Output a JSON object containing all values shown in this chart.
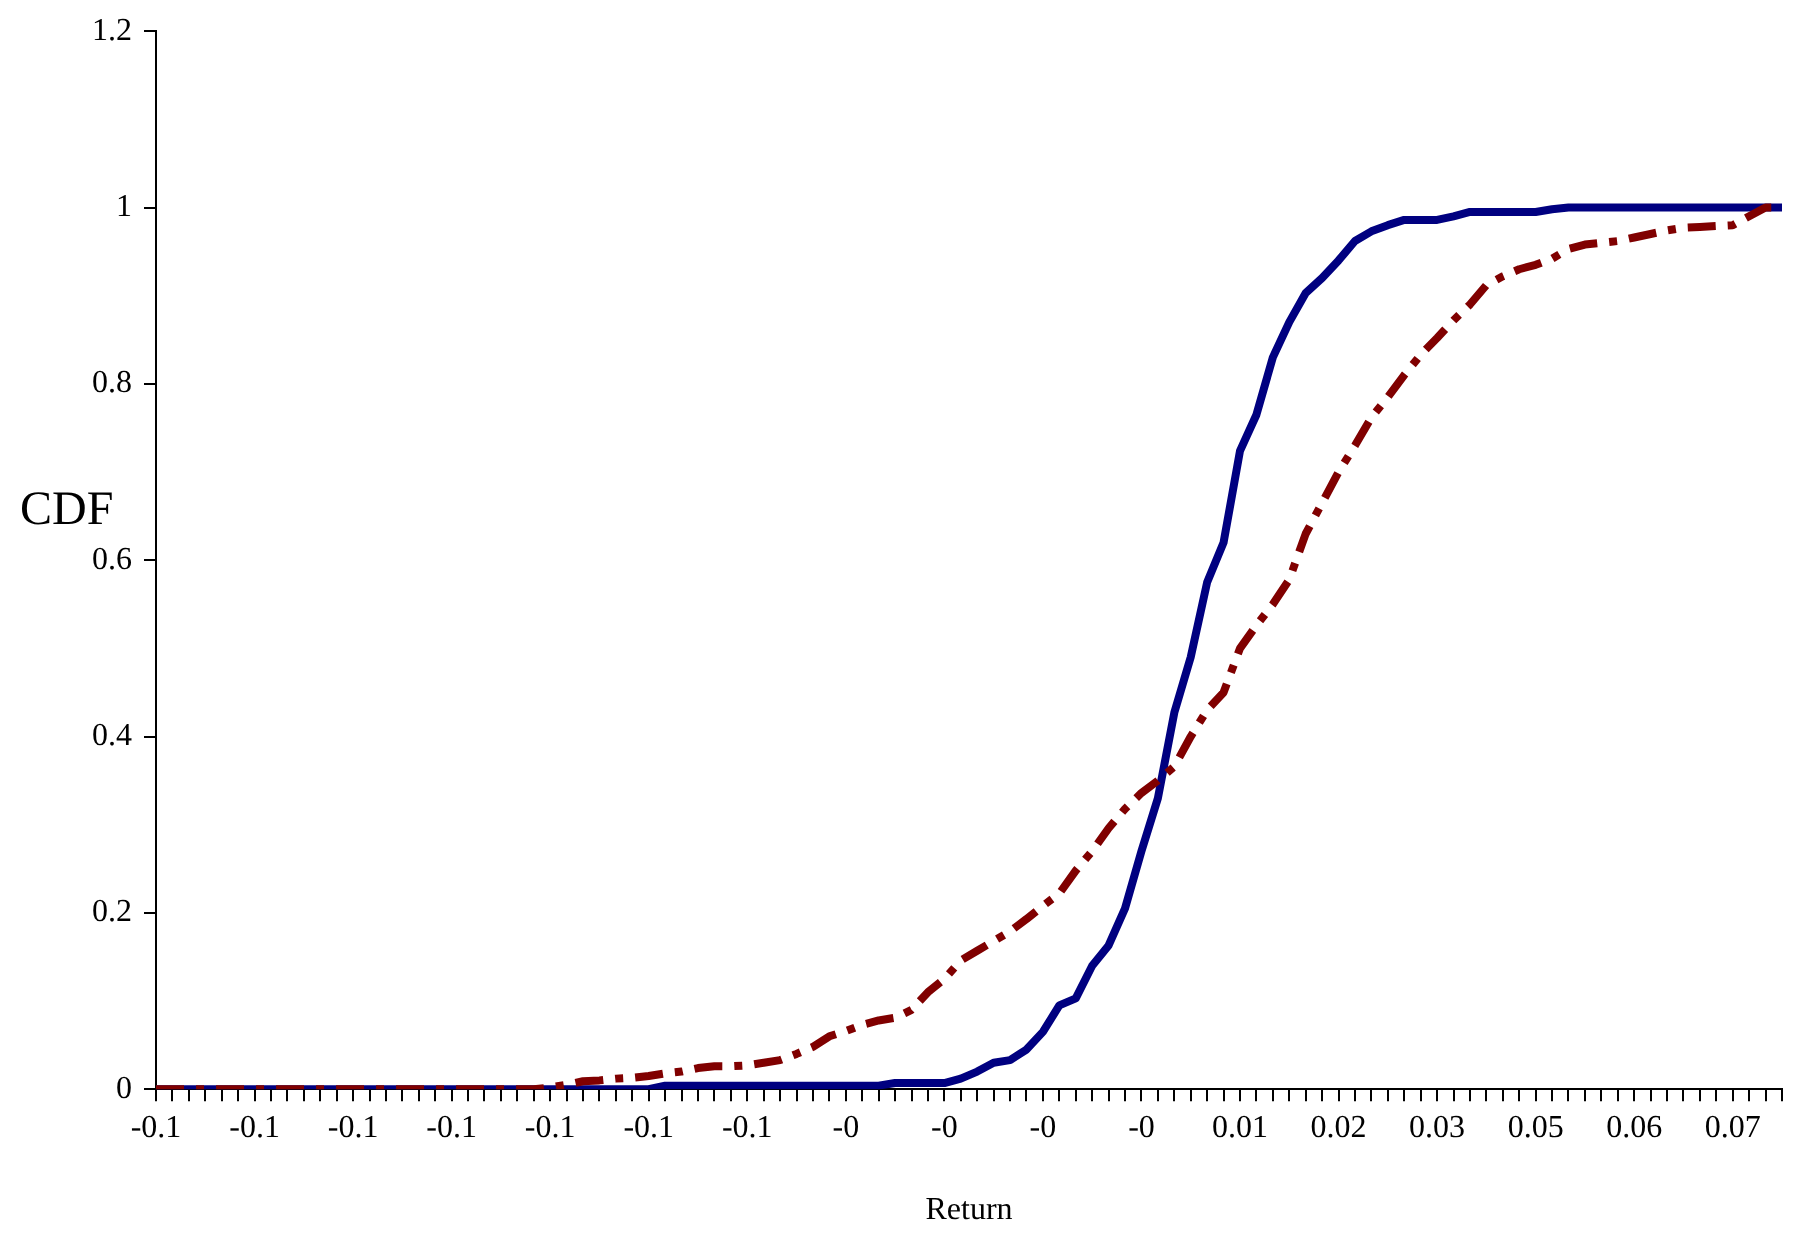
{
  "chart_data": {
    "type": "line",
    "xlabel": "Return",
    "ylabel": "CDF",
    "categories": [
      "-0.1",
      null,
      null,
      null,
      null,
      null,
      "-0.1",
      null,
      null,
      null,
      null,
      null,
      "-0.1",
      null,
      null,
      null,
      null,
      null,
      "-0.1",
      null,
      null,
      null,
      null,
      null,
      "-0.1",
      null,
      null,
      null,
      null,
      null,
      "-0.1",
      null,
      null,
      null,
      null,
      null,
      "-0.1",
      null,
      null,
      null,
      null,
      null,
      "-0",
      null,
      null,
      null,
      null,
      null,
      "-0",
      null,
      null,
      null,
      null,
      null,
      "-0",
      null,
      null,
      null,
      null,
      null,
      "-0",
      null,
      null,
      null,
      null,
      null,
      "0.01",
      null,
      null,
      null,
      null,
      null,
      "0.02",
      null,
      null,
      null,
      null,
      null,
      "0.03",
      null,
      null,
      null,
      null,
      null,
      "0.05",
      null,
      null,
      null,
      null,
      null,
      "0.06",
      null,
      null,
      null,
      null,
      null,
      "0.07",
      null,
      null,
      null
    ],
    "series": [
      {
        "color": "#000080",
        "line_style": "solid",
        "values": [
          0,
          0,
          0,
          0,
          0,
          0,
          0,
          0,
          0,
          0,
          0,
          0,
          0,
          0,
          0,
          0,
          0,
          0,
          0,
          0,
          0,
          0,
          0,
          0,
          0,
          0,
          0,
          0,
          0,
          0,
          0,
          0.004,
          0.004,
          0.004,
          0.004,
          0.004,
          0.004,
          0.004,
          0.004,
          0.004,
          0.004,
          0.004,
          0.004,
          0.004,
          0.004,
          0.007,
          0.007,
          0.007,
          0.007,
          0.012,
          0.02,
          0.03,
          0.033,
          0.045,
          0.065,
          0.095,
          0.103,
          0.14,
          0.163,
          0.205,
          0.27,
          0.33,
          0.427,
          0.49,
          0.575,
          0.62,
          0.724,
          0.765,
          0.83,
          0.87,
          0.903,
          0.92,
          0.94,
          0.962,
          0.973,
          0.98,
          0.986,
          0.986,
          0.986,
          0.99,
          0.995,
          0.995,
          0.995,
          0.995,
          0.995,
          0.998,
          1,
          1,
          1,
          1,
          1,
          1,
          1,
          1,
          1,
          1,
          1,
          1,
          1,
          1
        ]
      },
      {
        "color": "#800000",
        "line_style": "dashed",
        "values": [
          0,
          0,
          0,
          0,
          0,
          0,
          0,
          0,
          0,
          0,
          0,
          0,
          0,
          0,
          0,
          0,
          0,
          0,
          0,
          0,
          0,
          0,
          0,
          0,
          0.002,
          0.005,
          0.009,
          0.01,
          0.012,
          0.013,
          0.015,
          0.018,
          0.02,
          0.024,
          0.026,
          0.026,
          0.027,
          0.03,
          0.033,
          0.04,
          0.048,
          0.06,
          0.066,
          0.073,
          0.078,
          0.081,
          0.09,
          0.11,
          0.125,
          0.146,
          0.157,
          0.168,
          0.179,
          0.193,
          0.208,
          0.222,
          0.248,
          0.27,
          0.296,
          0.318,
          0.336,
          0.35,
          0.366,
          0.4,
          0.43,
          0.45,
          0.5,
          0.526,
          0.55,
          0.578,
          0.63,
          0.665,
          0.7,
          0.73,
          0.762,
          0.785,
          0.81,
          0.833,
          0.852,
          0.872,
          0.89,
          0.912,
          0.922,
          0.93,
          0.935,
          0.942,
          0.953,
          0.958,
          0.96,
          0.962,
          0.966,
          0.97,
          0.974,
          0.977,
          0.978,
          0.979,
          0.98,
          0.99,
          1,
          1
        ]
      }
    ],
    "ylim": [
      0,
      1.2
    ],
    "yticks": [
      0,
      0.2,
      0.4,
      0.6,
      0.8,
      1,
      1.2
    ],
    "grid": false,
    "legend": false,
    "marker": "none"
  }
}
